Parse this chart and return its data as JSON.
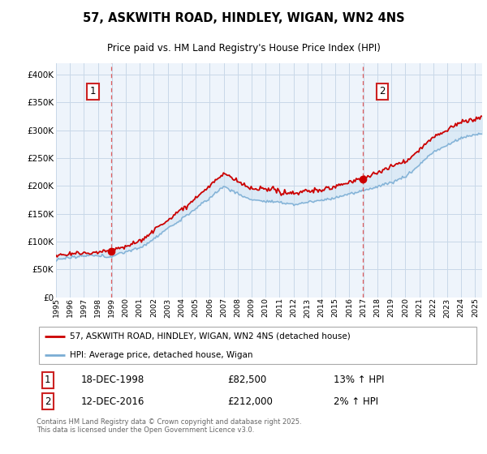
{
  "title": "57, ASKWITH ROAD, HINDLEY, WIGAN, WN2 4NS",
  "subtitle": "Price paid vs. HM Land Registry's House Price Index (HPI)",
  "sale1_date": "18-DEC-1998",
  "sale1_price": 82500,
  "sale1_hpi": "13% ↑ HPI",
  "sale1_label": "1",
  "sale1_year": 1998.96,
  "sale2_date": "12-DEC-2016",
  "sale2_price": 212000,
  "sale2_hpi": "2% ↑ HPI",
  "sale2_label": "2",
  "sale2_year": 2016.96,
  "legend_line1": "57, ASKWITH ROAD, HINDLEY, WIGAN, WN2 4NS (detached house)",
  "legend_line2": "HPI: Average price, detached house, Wigan",
  "footer": "Contains HM Land Registry data © Crown copyright and database right 2025.\nThis data is licensed under the Open Government Licence v3.0.",
  "ylim": [
    0,
    420000
  ],
  "xlim_start": 1995.0,
  "xlim_end": 2025.5,
  "red_color": "#cc0000",
  "blue_color": "#7aadd4",
  "fill_color": "#c8dff0",
  "bg_color": "#eef4fb",
  "grid_color": "#c8d8e8",
  "dashed_color": "#dd4444"
}
